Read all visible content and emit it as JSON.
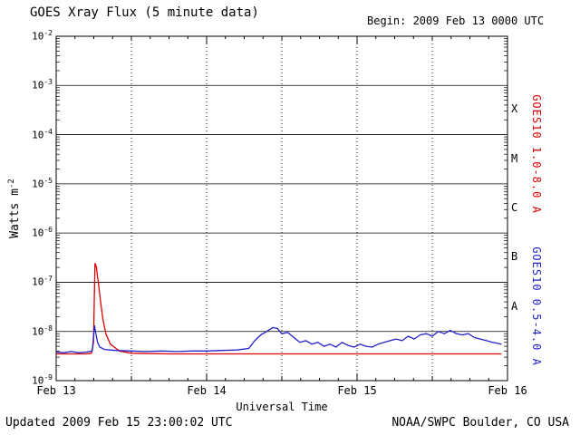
{
  "header": {
    "title": "GOES Xray Flux (5 minute data)",
    "begin_label": "Begin: 2009 Feb 13 0000 UTC"
  },
  "footer": {
    "updated": "Updated 2009 Feb 15 23:00:02 UTC",
    "source": "NOAA/SWPC Boulder, CO USA"
  },
  "chart_data": {
    "type": "line",
    "title": "GOES Xray Flux (5 minute data)",
    "xlabel": "Universal Time",
    "ylabel": "Watts m-2",
    "ylabel_base": "Watts m",
    "ylabel_exp": "-2",
    "x_range_days": [
      0,
      3
    ],
    "ylim": [
      "1e-9",
      "1e-2"
    ],
    "grid": {
      "h_solid_decades": true,
      "v_dotted_days": [
        0.5,
        1,
        1.5,
        2,
        2.5
      ]
    },
    "y_ticks": [
      -2,
      -3,
      -4,
      -5,
      -6,
      -7,
      -8,
      -9
    ],
    "x_ticks": [
      {
        "t": 0,
        "label": "Feb 13"
      },
      {
        "t": 1,
        "label": "Feb 14"
      },
      {
        "t": 2,
        "label": "Feb 15"
      },
      {
        "t": 3,
        "label": "Feb 16"
      }
    ],
    "flare_classes": [
      {
        "label": "X",
        "log_center": -3.5
      },
      {
        "label": "M",
        "log_center": -4.5
      },
      {
        "label": "C",
        "log_center": -5.5
      },
      {
        "label": "B",
        "log_center": -6.5
      },
      {
        "label": "A",
        "log_center": -7.5
      }
    ],
    "right_labels": [
      {
        "text": "GOES10 1.0-8.0 A",
        "color": "#dd0000"
      },
      {
        "text": "GOES10 0.5-4.0 A",
        "color": "#2222cc"
      }
    ],
    "series": [
      {
        "name": "GOES10 1.0-8.0 A",
        "color": "#dd0000",
        "points": [
          [
            0.0,
            3.5e-09
          ],
          [
            0.1,
            3.5e-09
          ],
          [
            0.2,
            3.5e-09
          ],
          [
            0.235,
            3.6e-09
          ],
          [
            0.248,
            6e-09
          ],
          [
            0.253,
            4e-08
          ],
          [
            0.258,
            2.4e-07
          ],
          [
            0.266,
            2.1e-07
          ],
          [
            0.28,
            1e-07
          ],
          [
            0.295,
            4e-08
          ],
          [
            0.31,
            1.8e-08
          ],
          [
            0.33,
            9e-09
          ],
          [
            0.36,
            5.5e-09
          ],
          [
            0.42,
            4e-09
          ],
          [
            0.5,
            3.6e-09
          ],
          [
            0.75,
            3.5e-09
          ],
          [
            1.0,
            3.5e-09
          ],
          [
            1.25,
            3.5e-09
          ],
          [
            1.5,
            3.5e-09
          ],
          [
            1.75,
            3.5e-09
          ],
          [
            2.0,
            3.5e-09
          ],
          [
            2.25,
            3.5e-09
          ],
          [
            2.5,
            3.5e-09
          ],
          [
            2.75,
            3.5e-09
          ],
          [
            2.96,
            3.5e-09
          ]
        ]
      },
      {
        "name": "GOES10 0.5-4.0 A",
        "color": "#2222cc",
        "points": [
          [
            0.0,
            3.8e-09
          ],
          [
            0.05,
            3.7e-09
          ],
          [
            0.1,
            3.9e-09
          ],
          [
            0.15,
            3.7e-09
          ],
          [
            0.2,
            3.8e-09
          ],
          [
            0.24,
            4e-09
          ],
          [
            0.255,
            1.3e-08
          ],
          [
            0.262,
            9.5e-09
          ],
          [
            0.275,
            6e-09
          ],
          [
            0.29,
            4.8e-09
          ],
          [
            0.32,
            4.3e-09
          ],
          [
            0.4,
            4.1e-09
          ],
          [
            0.5,
            4e-09
          ],
          [
            0.6,
            3.9e-09
          ],
          [
            0.7,
            4e-09
          ],
          [
            0.8,
            3.9e-09
          ],
          [
            0.9,
            4e-09
          ],
          [
            1.0,
            4e-09
          ],
          [
            1.1,
            4.1e-09
          ],
          [
            1.2,
            4.2e-09
          ],
          [
            1.28,
            4.5e-09
          ],
          [
            1.32,
            6.5e-09
          ],
          [
            1.36,
            8.5e-09
          ],
          [
            1.4,
            1e-08
          ],
          [
            1.44,
            1.2e-08
          ],
          [
            1.47,
            1.15e-08
          ],
          [
            1.5,
            9e-09
          ],
          [
            1.54,
            9.5e-09
          ],
          [
            1.58,
            7.5e-09
          ],
          [
            1.62,
            6e-09
          ],
          [
            1.66,
            6.5e-09
          ],
          [
            1.7,
            5.5e-09
          ],
          [
            1.74,
            6e-09
          ],
          [
            1.78,
            5e-09
          ],
          [
            1.82,
            5.5e-09
          ],
          [
            1.86,
            4.8e-09
          ],
          [
            1.9,
            6e-09
          ],
          [
            1.94,
            5.2e-09
          ],
          [
            1.98,
            4.8e-09
          ],
          [
            2.02,
            5.5e-09
          ],
          [
            2.06,
            5e-09
          ],
          [
            2.1,
            4.8e-09
          ],
          [
            2.14,
            5.5e-09
          ],
          [
            2.18,
            6e-09
          ],
          [
            2.22,
            6.5e-09
          ],
          [
            2.26,
            7e-09
          ],
          [
            2.3,
            6.5e-09
          ],
          [
            2.34,
            8e-09
          ],
          [
            2.38,
            7e-09
          ],
          [
            2.42,
            8.5e-09
          ],
          [
            2.46,
            9e-09
          ],
          [
            2.5,
            8e-09
          ],
          [
            2.54,
            1e-08
          ],
          [
            2.58,
            9e-09
          ],
          [
            2.62,
            1.05e-08
          ],
          [
            2.66,
            9e-09
          ],
          [
            2.7,
            8.5e-09
          ],
          [
            2.74,
            9e-09
          ],
          [
            2.78,
            7.5e-09
          ],
          [
            2.82,
            7e-09
          ],
          [
            2.86,
            6.5e-09
          ],
          [
            2.9,
            6e-09
          ],
          [
            2.96,
            5.5e-09
          ]
        ]
      }
    ]
  }
}
